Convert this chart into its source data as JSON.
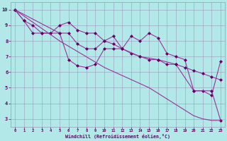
{
  "bg_color": "#b3e8e8",
  "grid_color": "#9999bb",
  "line_color": "#993399",
  "marker_color": "#660066",
  "xlabel": "Windchill (Refroidissement éolien,°C)",
  "xlabel_color": "#660066",
  "xlim": [
    -0.5,
    23.5
  ],
  "ylim": [
    2.5,
    10.5
  ],
  "yticks": [
    3,
    4,
    5,
    6,
    7,
    8,
    9,
    10
  ],
  "xticks": [
    0,
    1,
    2,
    3,
    4,
    5,
    6,
    7,
    8,
    9,
    10,
    11,
    12,
    13,
    14,
    15,
    16,
    17,
    18,
    19,
    20,
    21,
    22,
    23
  ],
  "line1_x": [
    0,
    1,
    2,
    3,
    4,
    5,
    6,
    7,
    8,
    9,
    10,
    11,
    12,
    13,
    14,
    15,
    16,
    17,
    18,
    19,
    20,
    21,
    22,
    23
  ],
  "line1_y": [
    10.0,
    9.3,
    8.5,
    8.5,
    8.5,
    8.5,
    8.5,
    7.8,
    7.5,
    7.5,
    8.0,
    8.3,
    7.5,
    8.3,
    8.0,
    8.5,
    8.2,
    7.2,
    7.0,
    6.8,
    4.8,
    4.8,
    4.5,
    6.7
  ],
  "line2_x": [
    0,
    1,
    2,
    3,
    4,
    5,
    6,
    7,
    8,
    9,
    10,
    11,
    12,
    13,
    14,
    15,
    16,
    17,
    18,
    19,
    20,
    21,
    22,
    23
  ],
  "line2_y": [
    10.0,
    9.3,
    9.0,
    8.5,
    8.5,
    9.0,
    9.2,
    8.7,
    8.5,
    8.5,
    8.0,
    7.8,
    7.5,
    7.2,
    7.0,
    6.8,
    6.8,
    6.5,
    6.5,
    6.3,
    6.1,
    5.9,
    5.7,
    5.5
  ],
  "line3_x": [
    0,
    5,
    6,
    7,
    8,
    9,
    10,
    11,
    12,
    14,
    16,
    18,
    20,
    22,
    23
  ],
  "line3_y": [
    10.0,
    8.5,
    6.8,
    6.4,
    6.3,
    6.5,
    7.5,
    7.5,
    7.5,
    7.0,
    6.8,
    6.5,
    4.8,
    4.8,
    2.9
  ],
  "line4_x": [
    0,
    5,
    10,
    15,
    20,
    21,
    22,
    23
  ],
  "line4_y": [
    10.0,
    8.0,
    6.3,
    5.0,
    3.2,
    3.0,
    2.9,
    2.9
  ]
}
